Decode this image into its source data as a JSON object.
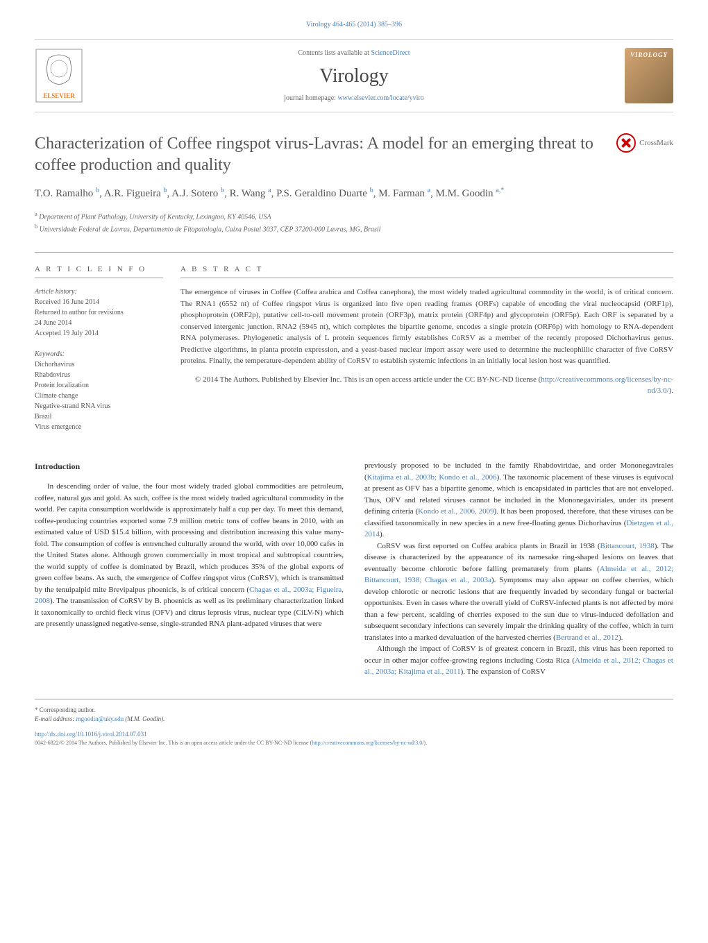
{
  "top_link": "Virology 464-465 (2014) 385–396",
  "header": {
    "contents_prefix": "Contents lists available at ",
    "contents_link": "ScienceDirect",
    "journal_name": "Virology",
    "homepage_prefix": "journal homepage: ",
    "homepage_link": "www.elsevier.com/locate/yviro",
    "virology_badge": "VIROLOGY"
  },
  "title": "Characterization of Coffee ringspot virus-Lavras: A model for an emerging threat to coffee production and quality",
  "crossmark_label": "CrossMark",
  "authors_html": "T.O. Ramalho <sup>b</sup>, A.R. Figueira <sup>b</sup>, A.J. Sotero <sup>b</sup>, R. Wang <sup>a</sup>, P.S. Geraldino Duarte <sup>b</sup>, M. Farman <sup>a</sup>, M.M. Goodin <sup>a,*</sup>",
  "affiliations": {
    "a": "Department of Plant Pathology, University of Kentucky, Lexington, KY 40546, USA",
    "b": "Universidade Federal de Lavras, Departamento de Fitopatologia, Caixa Postal 3037, CEP 37200-000 Lavras, MG, Brasil"
  },
  "article_info": {
    "header": "A R T I C L E   I N F O",
    "history_label": "Article history:",
    "history": [
      "Received 16 June 2014",
      "Returned to author for revisions",
      "24 June 2014",
      "Accepted 19 July 2014"
    ],
    "keywords_label": "Keywords:",
    "keywords": [
      "Dichorhavirus",
      "Rhabdovirus",
      "Protein localization",
      "Climate change",
      "Negative-strand RNA virus",
      "Brazil",
      "Virus emergence"
    ]
  },
  "abstract": {
    "header": "A B S T R A C T",
    "text": "The emergence of viruses in Coffee (Coffea arabica and Coffea canephora), the most widely traded agricultural commodity in the world, is of critical concern. The RNA1 (6552 nt) of Coffee ringspot virus is organized into five open reading frames (ORFs) capable of encoding the viral nucleocapsid (ORF1p), phosphoprotein (ORF2p), putative cell-to-cell movement protein (ORF3p), matrix protein (ORF4p) and glycoprotein (ORF5p). Each ORF is separated by a conserved intergenic junction. RNA2 (5945 nt), which completes the bipartite genome, encodes a single protein (ORF6p) with homology to RNA-dependent RNA polymerases. Phylogenetic analysis of L protein sequences firmly establishes CoRSV as a member of the recently proposed Dichorhavirus genus. Predictive algorithms, in planta protein expression, and a yeast-based nuclear import assay were used to determine the nucleophillic character of five CoRSV proteins. Finally, the temperature-dependent ability of CoRSV to establish systemic infections in an initially local lesion host was quantified.",
    "license_prefix": "© 2014 The Authors. Published by Elsevier Inc. This is an open access article under the CC BY-NC-ND license (",
    "license_link": "http://creativecommons.org/licenses/by-nc-nd/3.0/",
    "license_suffix": ")."
  },
  "introduction": {
    "header": "Introduction",
    "col1_p1": "In descending order of value, the four most widely traded global commodities are petroleum, coffee, natural gas and gold. As such, coffee is the most widely traded agricultural commodity in the world. Per capita consumption worldwide is approximately half a cup per day. To meet this demand, coffee-producing countries exported some 7.9 million metric tons of coffee beans in 2010, with an estimated value of USD $15.4 billion, with processing and distribution increasing this value many-fold. The consumption of coffee is entrenched culturally around the world, with over 10,000 cafes in the United States alone. Although grown commercially in most tropical and subtropical countries, the world supply of coffee is dominated by Brazil, which produces 35% of the global exports of green coffee beans. As such, the emergence of Coffee ringspot virus (CoRSV), which is transmitted by the tenuipalpid mite Brevipalpus phoenicis, is of critical concern (",
    "col1_cite1": "Chagas et al., 2003a; Figueira, 2008",
    "col1_p1_cont": "). The transmission of CoRSV by B. phoenicis as well as its preliminary characterization linked it taxonomically to orchid fleck virus (OFV) and citrus leprosis virus, nuclear type (CiLV-N) which are presently unassigned negative-sense, single-stranded RNA plant-adpated viruses that were",
    "col2_p1": "previously proposed to be included in the family Rhabdoviridae, and order Mononegavirales (",
    "col2_cite1": "Kitajima et al., 2003b; Kondo et al., 2006",
    "col2_p1_cont": "). The taxonomic placement of these viruses is equivocal at present as OFV has a bipartite genome, which is encapsidated in particles that are not enveloped. Thus, OFV and related viruses cannot be included in the Mononegaviriales, under its present defining criteria (",
    "col2_cite2": "Kondo et al., 2006, 2009",
    "col2_p1_cont2": "). It has been proposed, therefore, that these viruses can be classified taxonomically in new species in a new free-floating genus Dichorhavirus (",
    "col2_cite3": "Dietzgen et al., 2014",
    "col2_p1_cont3": ").",
    "col2_p2": "CoRSV was first reported on Coffea arabica plants in Brazil in 1938 (",
    "col2_cite4": "Bittancourt, 1938",
    "col2_p2_cont": "). The disease is characterized by the appearance of its namesake ring-shaped lesions on leaves that eventually become chlorotic before falling prematurely from plants (",
    "col2_cite5": "Almeida et al., 2012; Bittancourt, 1938; Chagas et al., 2003a",
    "col2_p2_cont2": "). Symptoms may also appear on coffee cherries, which develop chlorotic or necrotic lesions that are frequently invaded by secondary fungal or bacterial opportunists. Even in cases where the overall yield of CoRSV-infected plants is not affected by more than a few percent, scalding of cherries exposed to the sun due to virus-induced defoliation and subsequent secondary infections can severely impair the drinking quality of the coffee, which in turn translates into a marked devaluation of the harvested cherries (",
    "col2_cite6": "Bertrand et al., 2012",
    "col2_p2_cont3": ").",
    "col2_p3": "Although the impact of CoRSV is of greatest concern in Brazil, this virus has been reported to occur in other major coffee-growing regions including Costa Rica (",
    "col2_cite7": "Almeida et al., 2012; Chagas et al., 2003a; Kitajima et al., 2011",
    "col2_p3_cont": "). The expansion of CoRSV"
  },
  "footer": {
    "corresponding": "* Corresponding author.",
    "email_label": "E-mail address: ",
    "email": "mgoodin@uky.edu",
    "email_suffix": " (M.M. Goodin).",
    "doi": "http://dx.doi.org/10.1016/j.virol.2014.07.031",
    "copyright": "0042-6822/© 2014 The Authors. Published by Elsevier Inc. This is an open access article under the CC BY-NC-ND license (",
    "copyright_link": "http://creativecommons.org/licenses/by-nc-nd/3.0/",
    "copyright_suffix": ")."
  },
  "colors": {
    "link": "#4a7fb5",
    "text": "#333333",
    "heading": "#555555",
    "border": "#999999"
  }
}
